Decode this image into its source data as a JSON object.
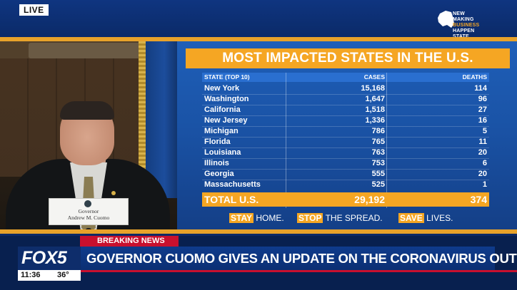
{
  "top": {
    "live_label": "LIVE"
  },
  "ny_logo": {
    "line1": "NEW",
    "line2": "MAKING",
    "line3": "BUSINESS",
    "line4": "HAPPEN",
    "line5": "STATE"
  },
  "podium": {
    "nameplate_title": "Governor",
    "nameplate_name": "Andrew M. Cuomo"
  },
  "graphic": {
    "title": "MOST IMPACTED STATES IN THE U.S.",
    "headers": {
      "state": "STATE (TOP 10)",
      "cases": "CASES",
      "deaths": "DEATHS"
    },
    "rows": [
      {
        "state": "New York",
        "cases": "15,168",
        "deaths": "114"
      },
      {
        "state": "Washington",
        "cases": "1,647",
        "deaths": "96"
      },
      {
        "state": "California",
        "cases": "1,518",
        "deaths": "27"
      },
      {
        "state": "New Jersey",
        "cases": "1,336",
        "deaths": "16"
      },
      {
        "state": "Michigan",
        "cases": "786",
        "deaths": "5"
      },
      {
        "state": "Florida",
        "cases": "765",
        "deaths": "11"
      },
      {
        "state": "Louisiana",
        "cases": "763",
        "deaths": "20"
      },
      {
        "state": "Illinois",
        "cases": "753",
        "deaths": "6"
      },
      {
        "state": "Georgia",
        "cases": "555",
        "deaths": "20"
      },
      {
        "state": "Massachusetts",
        "cases": "525",
        "deaths": "1"
      }
    ],
    "total": {
      "label": "TOTAL U.S.",
      "cases": "29,192",
      "deaths": "374"
    },
    "slogans": [
      {
        "highlight": "STAY",
        "rest": " HOME."
      },
      {
        "highlight": "STOP",
        "rest": " THE SPREAD."
      },
      {
        "highlight": "SAVE",
        "rest": " LIVES."
      }
    ],
    "colors": {
      "accent": "#f5a623",
      "background": "#1a53a6"
    }
  },
  "lower_third": {
    "breaking_label": "BREAKING NEWS",
    "network": "FOX5",
    "headline": "GOVERNOR CUOMO GIVES AN UPDATE ON THE CORONAVIRUS OUTBREAK",
    "time": "11:36",
    "temperature": "36°"
  }
}
